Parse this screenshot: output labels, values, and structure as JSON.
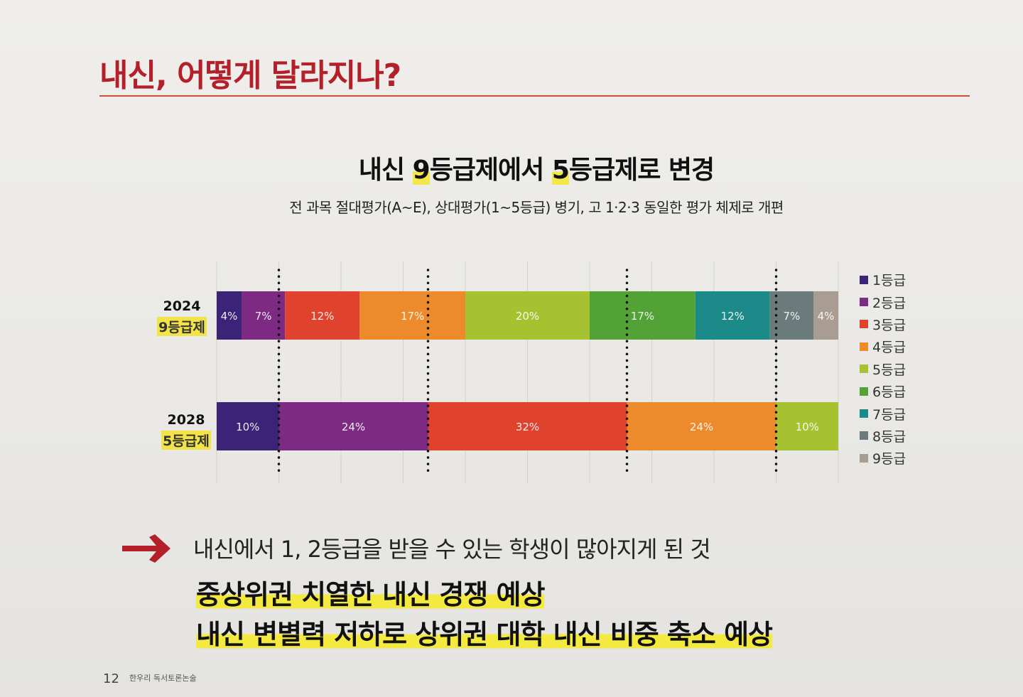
{
  "header": {
    "title": "내신, 어떻게 달라지나?"
  },
  "chart_heading": {
    "part1": "내신 ",
    "num1": "9",
    "part2": "등급제에서 ",
    "num2": "5",
    "part3": "등급제로 변경"
  },
  "chart_subtitle": "전 과목 절대평가(A~E), 상대평가(1~5등급) 병기, 고 1·2·3 동일한 평가 체제로 개편",
  "chart_data": {
    "type": "bar",
    "orientation": "horizontal",
    "stacked": true,
    "xlim": [
      0,
      100
    ],
    "grid": true,
    "legend_position": "right",
    "legend": [
      "1등급",
      "2등급",
      "3등급",
      "4등급",
      "5등급",
      "6등급",
      "7등급",
      "8등급",
      "9등급"
    ],
    "colors": [
      "#3b2378",
      "#7d2a82",
      "#e0432d",
      "#ec8a2c",
      "#a6c230",
      "#52a236",
      "#1d8a8a",
      "#6b7a7a",
      "#a99c92"
    ],
    "rows": [
      {
        "year": "2024",
        "system": "9등급제",
        "segments": [
          {
            "grade": "1등급",
            "value": 4,
            "label": "4%"
          },
          {
            "grade": "2등급",
            "value": 7,
            "label": "7%"
          },
          {
            "grade": "3등급",
            "value": 12,
            "label": "12%"
          },
          {
            "grade": "4등급",
            "value": 17,
            "label": "17%"
          },
          {
            "grade": "5등급",
            "value": 20,
            "label": "20%"
          },
          {
            "grade": "6등급",
            "value": 17,
            "label": "17%"
          },
          {
            "grade": "7등급",
            "value": 12,
            "label": "12%"
          },
          {
            "grade": "8등급",
            "value": 7,
            "label": "7%"
          },
          {
            "grade": "9등급",
            "value": 4,
            "label": "4%"
          }
        ]
      },
      {
        "year": "2028",
        "system": "5등급제",
        "segments": [
          {
            "grade": "1등급",
            "value": 10,
            "label": "10%",
            "color": "#3b2378"
          },
          {
            "grade": "2등급",
            "value": 24,
            "label": "24%",
            "color": "#7d2a82"
          },
          {
            "grade": "3등급",
            "value": 32,
            "label": "32%",
            "color": "#e0432d"
          },
          {
            "grade": "4등급",
            "value": 24,
            "label": "24%",
            "color": "#ec8a2c"
          },
          {
            "grade": "5등급",
            "value": 10,
            "label": "10%",
            "color": "#a6c230"
          }
        ]
      }
    ],
    "boundaries": [
      10,
      34,
      66,
      90
    ]
  },
  "point": "내신에서 1, 2등급을 받을 수 있는 학생이 많아지게 된 것",
  "conclusions": [
    "중상위권 치열한 내신 경쟁 예상",
    "내신 변별력 저하로 상위권 대학 내신 비중 축소 예상"
  ],
  "footer": {
    "page_number": "12",
    "brand": "한우리 독서토론논술"
  }
}
